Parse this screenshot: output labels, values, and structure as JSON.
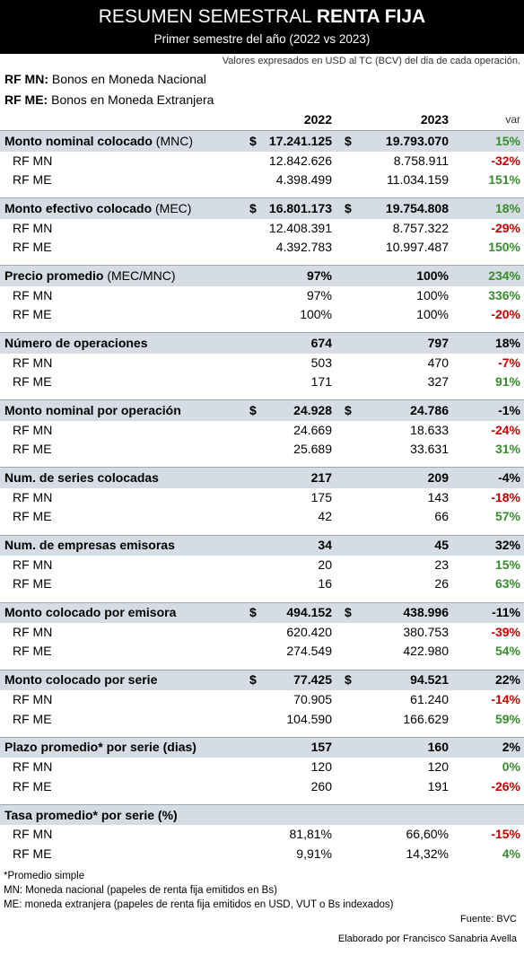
{
  "title": {
    "prefix": "RESUMEN SEMESTRAL",
    "bold": "RENTA FIJA"
  },
  "subtitle": "Primer semestre del año (2022 vs 2023)",
  "note": "Valores expresados en USD al TC (BCV) del dia de cada operación.",
  "legend": [
    {
      "abbr": "RF MN:",
      "text": "Bonos en Moneda Nacional"
    },
    {
      "abbr": "RF ME:",
      "text": "Bonos en Moneda Extranjera"
    }
  ],
  "columns": {
    "y1": "2022",
    "y2": "2023",
    "var": "var"
  },
  "sections": [
    {
      "label": "Monto nominal colocado",
      "label_light": "(MNC)",
      "cur1": "$",
      "total1": "17.241.125",
      "cur2": "$",
      "total2": "19.793.070",
      "var": "15%",
      "var_type": "pos",
      "rows": [
        {
          "label": "RF MN",
          "v1": "12.842.626",
          "v2": "8.758.911",
          "var": "-32%",
          "var_type": "neg"
        },
        {
          "label": "RF ME",
          "v1": "4.398.499",
          "v2": "11.034.159",
          "var": "151%",
          "var_type": "pos"
        }
      ]
    },
    {
      "label": "Monto efectivo colocado",
      "label_light": "(MEC)",
      "cur1": "$",
      "total1": "16.801.173",
      "cur2": "$",
      "total2": "19.754.808",
      "var": "18%",
      "var_type": "pos",
      "rows": [
        {
          "label": "RF MN",
          "v1": "12.408.391",
          "v2": "8.757.322",
          "var": "-29%",
          "var_type": "neg"
        },
        {
          "label": "RF ME",
          "v1": "4.392.783",
          "v2": "10.997.487",
          "var": "150%",
          "var_type": "pos"
        }
      ]
    },
    {
      "label": "Precio promedio",
      "label_light": "(MEC/MNC)",
      "cur1": "",
      "total1": "97%",
      "cur2": "",
      "total2": "100%",
      "var": "234%",
      "var_type": "pos",
      "rows": [
        {
          "label": "RF MN",
          "v1": "97%",
          "v2": "100%",
          "var": "336%",
          "var_type": "pos"
        },
        {
          "label": "RF ME",
          "v1": "100%",
          "v2": "100%",
          "var": "-20%",
          "var_type": "neg"
        }
      ]
    },
    {
      "label": "Número de operaciones",
      "label_light": "",
      "cur1": "",
      "total1": "674",
      "cur2": "",
      "total2": "797",
      "var": "18%",
      "var_type": "neu",
      "rows": [
        {
          "label": "RF MN",
          "v1": "503",
          "v2": "470",
          "var": "-7%",
          "var_type": "neg"
        },
        {
          "label": "RF ME",
          "v1": "171",
          "v2": "327",
          "var": "91%",
          "var_type": "pos"
        }
      ]
    },
    {
      "label": "Monto nominal por operación",
      "label_light": "",
      "cur1": "$",
      "total1": "24.928",
      "cur2": "$",
      "total2": "24.786",
      "var": "-1%",
      "var_type": "neu",
      "rows": [
        {
          "label": "RF MN",
          "v1": "24.669",
          "v2": "18.633",
          "var": "-24%",
          "var_type": "neg"
        },
        {
          "label": "RF ME",
          "v1": "25.689",
          "v2": "33.631",
          "var": "31%",
          "var_type": "pos"
        }
      ]
    },
    {
      "label": "Num. de series colocadas",
      "label_light": "",
      "cur1": "",
      "total1": "217",
      "cur2": "",
      "total2": "209",
      "var": "-4%",
      "var_type": "neu",
      "rows": [
        {
          "label": "RF MN",
          "v1": "175",
          "v2": "143",
          "var": "-18%",
          "var_type": "neg"
        },
        {
          "label": "RF ME",
          "v1": "42",
          "v2": "66",
          "var": "57%",
          "var_type": "pos"
        }
      ]
    },
    {
      "label": "Num. de empresas emisoras",
      "label_light": "",
      "cur1": "",
      "total1": "34",
      "cur2": "",
      "total2": "45",
      "var": "32%",
      "var_type": "neu",
      "rows": [
        {
          "label": "RF MN",
          "v1": "20",
          "v2": "23",
          "var": "15%",
          "var_type": "pos"
        },
        {
          "label": "RF ME",
          "v1": "16",
          "v2": "26",
          "var": "63%",
          "var_type": "pos"
        }
      ]
    },
    {
      "label": "Monto colocado por emisora",
      "label_light": "",
      "cur1": "$",
      "total1": "494.152",
      "cur2": "$",
      "total2": "438.996",
      "var": "-11%",
      "var_type": "neu",
      "rows": [
        {
          "label": "RF MN",
          "v1": "620.420",
          "v2": "380.753",
          "var": "-39%",
          "var_type": "neg"
        },
        {
          "label": "RF ME",
          "v1": "274.549",
          "v2": "422.980",
          "var": "54%",
          "var_type": "pos"
        }
      ]
    },
    {
      "label": "Monto colocado por serie",
      "label_light": "",
      "cur1": "$",
      "total1": "77.425",
      "cur2": "$",
      "total2": "94.521",
      "var": "22%",
      "var_type": "neu",
      "rows": [
        {
          "label": "RF MN",
          "v1": "70.905",
          "v2": "61.240",
          "var": "-14%",
          "var_type": "neg"
        },
        {
          "label": "RF ME",
          "v1": "104.590",
          "v2": "166.629",
          "var": "59%",
          "var_type": "pos"
        }
      ]
    },
    {
      "label": "Plazo promedio* por serie (dias)",
      "label_light": "",
      "cur1": "",
      "total1": "157",
      "cur2": "",
      "total2": "160",
      "var": "2%",
      "var_type": "neu",
      "rows": [
        {
          "label": "RF MN",
          "v1": "120",
          "v2": "120",
          "var": "0%",
          "var_type": "pos"
        },
        {
          "label": "RF ME",
          "v1": "260",
          "v2": "191",
          "var": "-26%",
          "var_type": "neg"
        }
      ]
    },
    {
      "label": "Tasa promedio* por serie (%)",
      "label_light": "",
      "cur1": "",
      "total1": "",
      "cur2": "",
      "total2": "",
      "var": "",
      "var_type": "neu",
      "rows": [
        {
          "label": "RF MN",
          "v1": "81,81%",
          "v2": "66,60%",
          "var": "-15%",
          "var_type": "neg"
        },
        {
          "label": "RF ME",
          "v1": "9,91%",
          "v2": "14,32%",
          "var": "4%",
          "var_type": "pos"
        }
      ]
    }
  ],
  "footnotes": [
    "*Promedio simple",
    "MN: Moneda nacional (papeles de renta fija emitidos en Bs)",
    "ME: moneda extranjera (papeles de renta fija emitidos en USD, VUT o Bs indexados)"
  ],
  "source": "Fuente: BVC",
  "credit": "Elaborado por Francisco Sanabria Avella",
  "colors": {
    "header_bg": "#000000",
    "section_bg": "#d6dce4",
    "positive": "#3a8a30",
    "negative": "#c00000"
  }
}
